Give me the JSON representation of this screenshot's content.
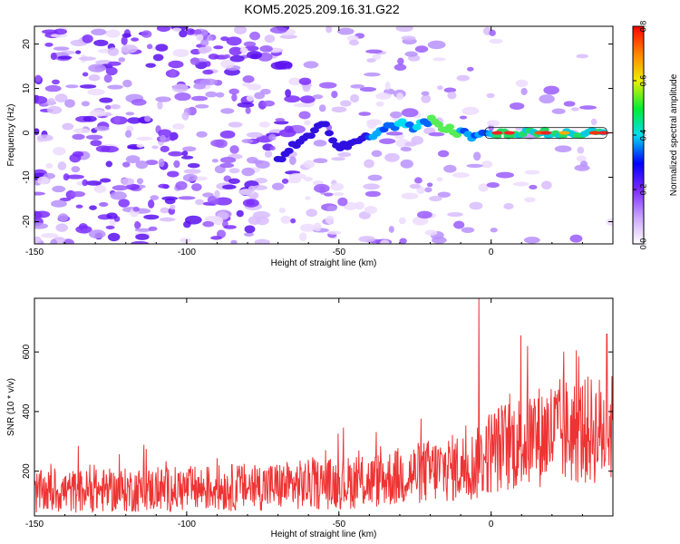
{
  "title": "KOM5.2025.209.16.31.G22",
  "chart_data": [
    {
      "type": "heatmap",
      "xlabel": "Height of straight line (km)",
      "ylabel": "Frequency (Hz)",
      "xlim": [
        -150,
        40
      ],
      "ylim": [
        -25,
        24
      ],
      "xticks": [
        -150,
        -100,
        -50,
        0
      ],
      "yticks": [
        -20,
        -10,
        0,
        10,
        20
      ],
      "colorbar": {
        "label": "Normalized spectral amplitude",
        "range": [
          0,
          0.8
        ],
        "ticks": [
          "0.0",
          "0.2",
          "0.4",
          "0.6",
          "0.8"
        ]
      },
      "ridge": {
        "description_values": "dominant frequency track (Hz) vs height (km)",
        "x": [
          -70,
          -65,
          -60,
          -55,
          -50,
          -45,
          -40,
          -35,
          -30,
          -25,
          -20,
          -15,
          -10,
          -5,
          0,
          10,
          20,
          30,
          38
        ],
        "y": [
          -6,
          -3,
          -1,
          2,
          -3,
          -2,
          -1,
          1,
          2,
          1,
          3,
          1,
          0,
          -1,
          0,
          0,
          0,
          0,
          0
        ]
      }
    },
    {
      "type": "line",
      "xlabel": "Height of straight line (km)",
      "ylabel": "SNR (10 * v/v)",
      "xlim": [
        -150,
        40
      ],
      "ylim": [
        50,
        780
      ],
      "xticks": [
        -150,
        -100,
        -50,
        0
      ],
      "yticks": [
        200,
        400,
        600
      ],
      "series": [
        {
          "color": "#ee3333",
          "trend_x": [
            -150,
            -100,
            -70,
            -40,
            -20,
            -5,
            0,
            20,
            40
          ],
          "trend_y": [
            130,
            140,
            150,
            165,
            200,
            220,
            270,
            330,
            340
          ],
          "spikes": [
            {
              "x": -4,
              "y": 780
            },
            {
              "x": 12,
              "y": 620
            },
            {
              "x": 38,
              "y": 660
            }
          ]
        }
      ]
    }
  ]
}
